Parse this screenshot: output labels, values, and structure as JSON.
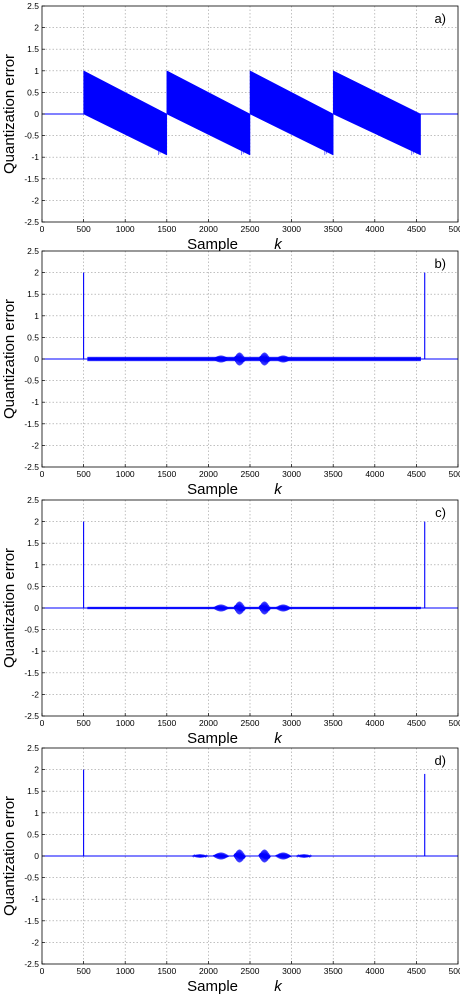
{
  "colors": {
    "signal": "#0000ff",
    "grid": "#9a9a9a",
    "axis": "#000000",
    "background": "#ffffff"
  },
  "chart_data": [
    {
      "type": "line",
      "panel_label": "a)",
      "xlabel": "Sample",
      "xlabel_var": "k",
      "ylabel": "Quantization error",
      "xlim": [
        0,
        5000
      ],
      "ylim": [
        -2.5,
        2.5
      ],
      "xticks": [
        "0",
        "500",
        "1000",
        "1500",
        "2000",
        "2500",
        "3000",
        "3500",
        "4000",
        "4500",
        "5000"
      ],
      "yticks": [
        "2.5",
        "2",
        "1.5",
        "1",
        "0.5",
        "0",
        "-0.5",
        "-1",
        "-1.5",
        "-2",
        "-2.5"
      ],
      "grid": true,
      "baseline": 0,
      "segments": [
        {
          "x": [
            500,
            1500
          ],
          "upper": [
            1.0,
            0.0
          ],
          "lower": [
            0.0,
            -0.95
          ]
        },
        {
          "x": [
            1500,
            2500
          ],
          "upper": [
            1.0,
            0.0
          ],
          "lower": [
            0.0,
            -0.95
          ]
        },
        {
          "x": [
            2500,
            3500
          ],
          "upper": [
            1.0,
            0.0
          ],
          "lower": [
            0.0,
            -0.95
          ]
        },
        {
          "x": [
            3500,
            4550
          ],
          "upper": [
            1.0,
            0.0
          ],
          "lower": [
            0.0,
            -0.95
          ]
        }
      ],
      "spikes": [],
      "bursts": []
    },
    {
      "type": "line",
      "panel_label": "b)",
      "xlabel": "Sample",
      "xlabel_var": "k",
      "ylabel": "Quantization error",
      "xlim": [
        0,
        5000
      ],
      "ylim": [
        -2.5,
        2.5
      ],
      "xticks": [
        "0",
        "500",
        "1000",
        "1500",
        "2000",
        "2500",
        "3000",
        "3500",
        "4000",
        "4500",
        "5000"
      ],
      "yticks": [
        "2.5",
        "2",
        "1.5",
        "1",
        "0.5",
        "0",
        "-0.5",
        "-1",
        "-1.5",
        "-2",
        "-2.5"
      ],
      "grid": true,
      "baseline": 0,
      "segments": [],
      "spikes": [
        {
          "x": 500,
          "y": 2.0
        },
        {
          "x": 4600,
          "y": 2.0
        }
      ],
      "bursts": [
        {
          "x": [
            550,
            4550
          ],
          "amp": 0.05
        },
        {
          "x": [
            2050,
            2250
          ],
          "amp": 0.08
        },
        {
          "x": [
            2300,
            2450
          ],
          "amp": 0.15
        },
        {
          "x": [
            2600,
            2750
          ],
          "amp": 0.15
        },
        {
          "x": [
            2800,
            3000
          ],
          "amp": 0.08
        }
      ]
    },
    {
      "type": "line",
      "panel_label": "c)",
      "xlabel": "Sample",
      "xlabel_var": "k",
      "ylabel": "Quantization error",
      "xlim": [
        0,
        5000
      ],
      "ylim": [
        -2.5,
        2.5
      ],
      "xticks": [
        "0",
        "500",
        "1000",
        "1500",
        "2000",
        "2500",
        "3000",
        "3500",
        "4000",
        "4500",
        "5000"
      ],
      "yticks": [
        "2.5",
        "2",
        "1.5",
        "1",
        "0.5",
        "0",
        "-0.5",
        "-1",
        "-1.5",
        "-2",
        "-2.5"
      ],
      "grid": true,
      "baseline": 0,
      "segments": [],
      "spikes": [
        {
          "x": 500,
          "y": 2.0
        },
        {
          "x": 4600,
          "y": 2.0
        }
      ],
      "bursts": [
        {
          "x": [
            550,
            4550
          ],
          "amp": 0.025
        },
        {
          "x": [
            2050,
            2250
          ],
          "amp": 0.08
        },
        {
          "x": [
            2300,
            2450
          ],
          "amp": 0.15
        },
        {
          "x": [
            2600,
            2750
          ],
          "amp": 0.15
        },
        {
          "x": [
            2800,
            3000
          ],
          "amp": 0.08
        }
      ]
    },
    {
      "type": "line",
      "panel_label": "d)",
      "xlabel": "Sample",
      "xlabel_var": "k",
      "ylabel": "Quantization error",
      "xlim": [
        0,
        5000
      ],
      "ylim": [
        -2.5,
        2.5
      ],
      "xticks": [
        "0",
        "500",
        "1000",
        "1500",
        "2000",
        "2500",
        "3000",
        "3500",
        "4000",
        "4500",
        "5000"
      ],
      "yticks": [
        "2.5",
        "2",
        "1.5",
        "1",
        "0.5",
        "0",
        "-0.5",
        "-1",
        "-1.5",
        "-2",
        "-2.5"
      ],
      "grid": true,
      "baseline": 0,
      "segments": [],
      "spikes": [
        {
          "x": 500,
          "y": 2.0
        },
        {
          "x": 4600,
          "y": 1.9
        }
      ],
      "bursts": [
        {
          "x": [
            1800,
            2000
          ],
          "amp": 0.04
        },
        {
          "x": [
            2050,
            2250
          ],
          "amp": 0.08
        },
        {
          "x": [
            2300,
            2450
          ],
          "amp": 0.15
        },
        {
          "x": [
            2600,
            2750
          ],
          "amp": 0.15
        },
        {
          "x": [
            2800,
            3000
          ],
          "amp": 0.08
        },
        {
          "x": [
            3050,
            3250
          ],
          "amp": 0.04
        }
      ]
    }
  ]
}
